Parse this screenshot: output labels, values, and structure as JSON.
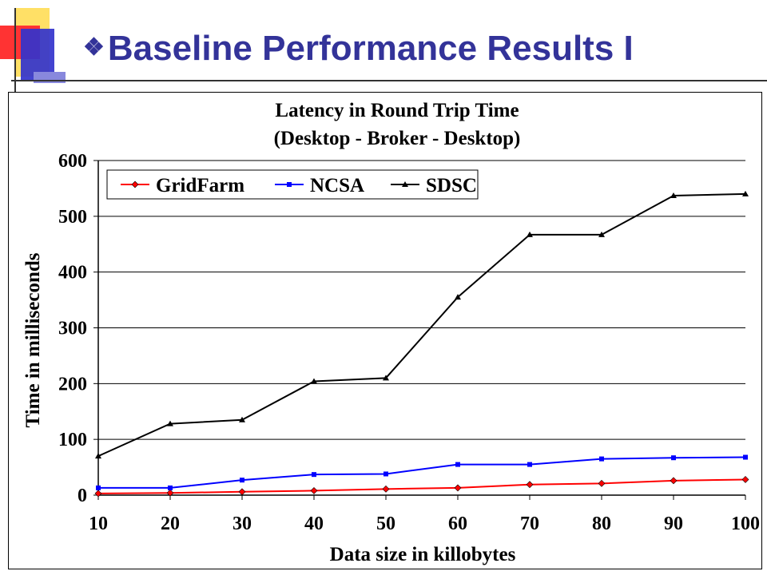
{
  "slide": {
    "bullet": "❖",
    "title": "Baseline Performance Results I"
  },
  "colors": {
    "title": "#333399",
    "deco_red": "#ff3333",
    "deco_blue": "#3333cc",
    "deco_yellow": "#ffe066",
    "gridfarm": "#ff0000",
    "ncsa": "#0000ff",
    "sdsc": "#000000"
  },
  "chart_data": {
    "type": "line",
    "title": [
      "Latency in Round Trip Time",
      "(Desktop - Broker - Desktop)"
    ],
    "xlabel": "Data size in killobytes",
    "ylabel": "Time in milliseconds",
    "x": [
      10,
      20,
      30,
      40,
      50,
      60,
      70,
      80,
      90,
      100
    ],
    "ylim": [
      0,
      600
    ],
    "yticks": [
      0,
      100,
      200,
      300,
      400,
      500,
      600
    ],
    "grid": true,
    "legend": "top-left, inside plot, single row",
    "series": [
      {
        "name": "GridFarm",
        "color": "#ff0000",
        "marker": "diamond",
        "values": [
          3,
          4,
          6,
          8,
          11,
          13,
          19,
          21,
          26,
          28
        ]
      },
      {
        "name": "NCSA",
        "color": "#0000ff",
        "marker": "square",
        "values": [
          13,
          13,
          27,
          37,
          38,
          55,
          55,
          65,
          67,
          68
        ]
      },
      {
        "name": "SDSC",
        "color": "#000000",
        "marker": "triangle",
        "values": [
          70,
          128,
          135,
          204,
          210,
          355,
          467,
          467,
          537,
          540
        ]
      }
    ]
  }
}
